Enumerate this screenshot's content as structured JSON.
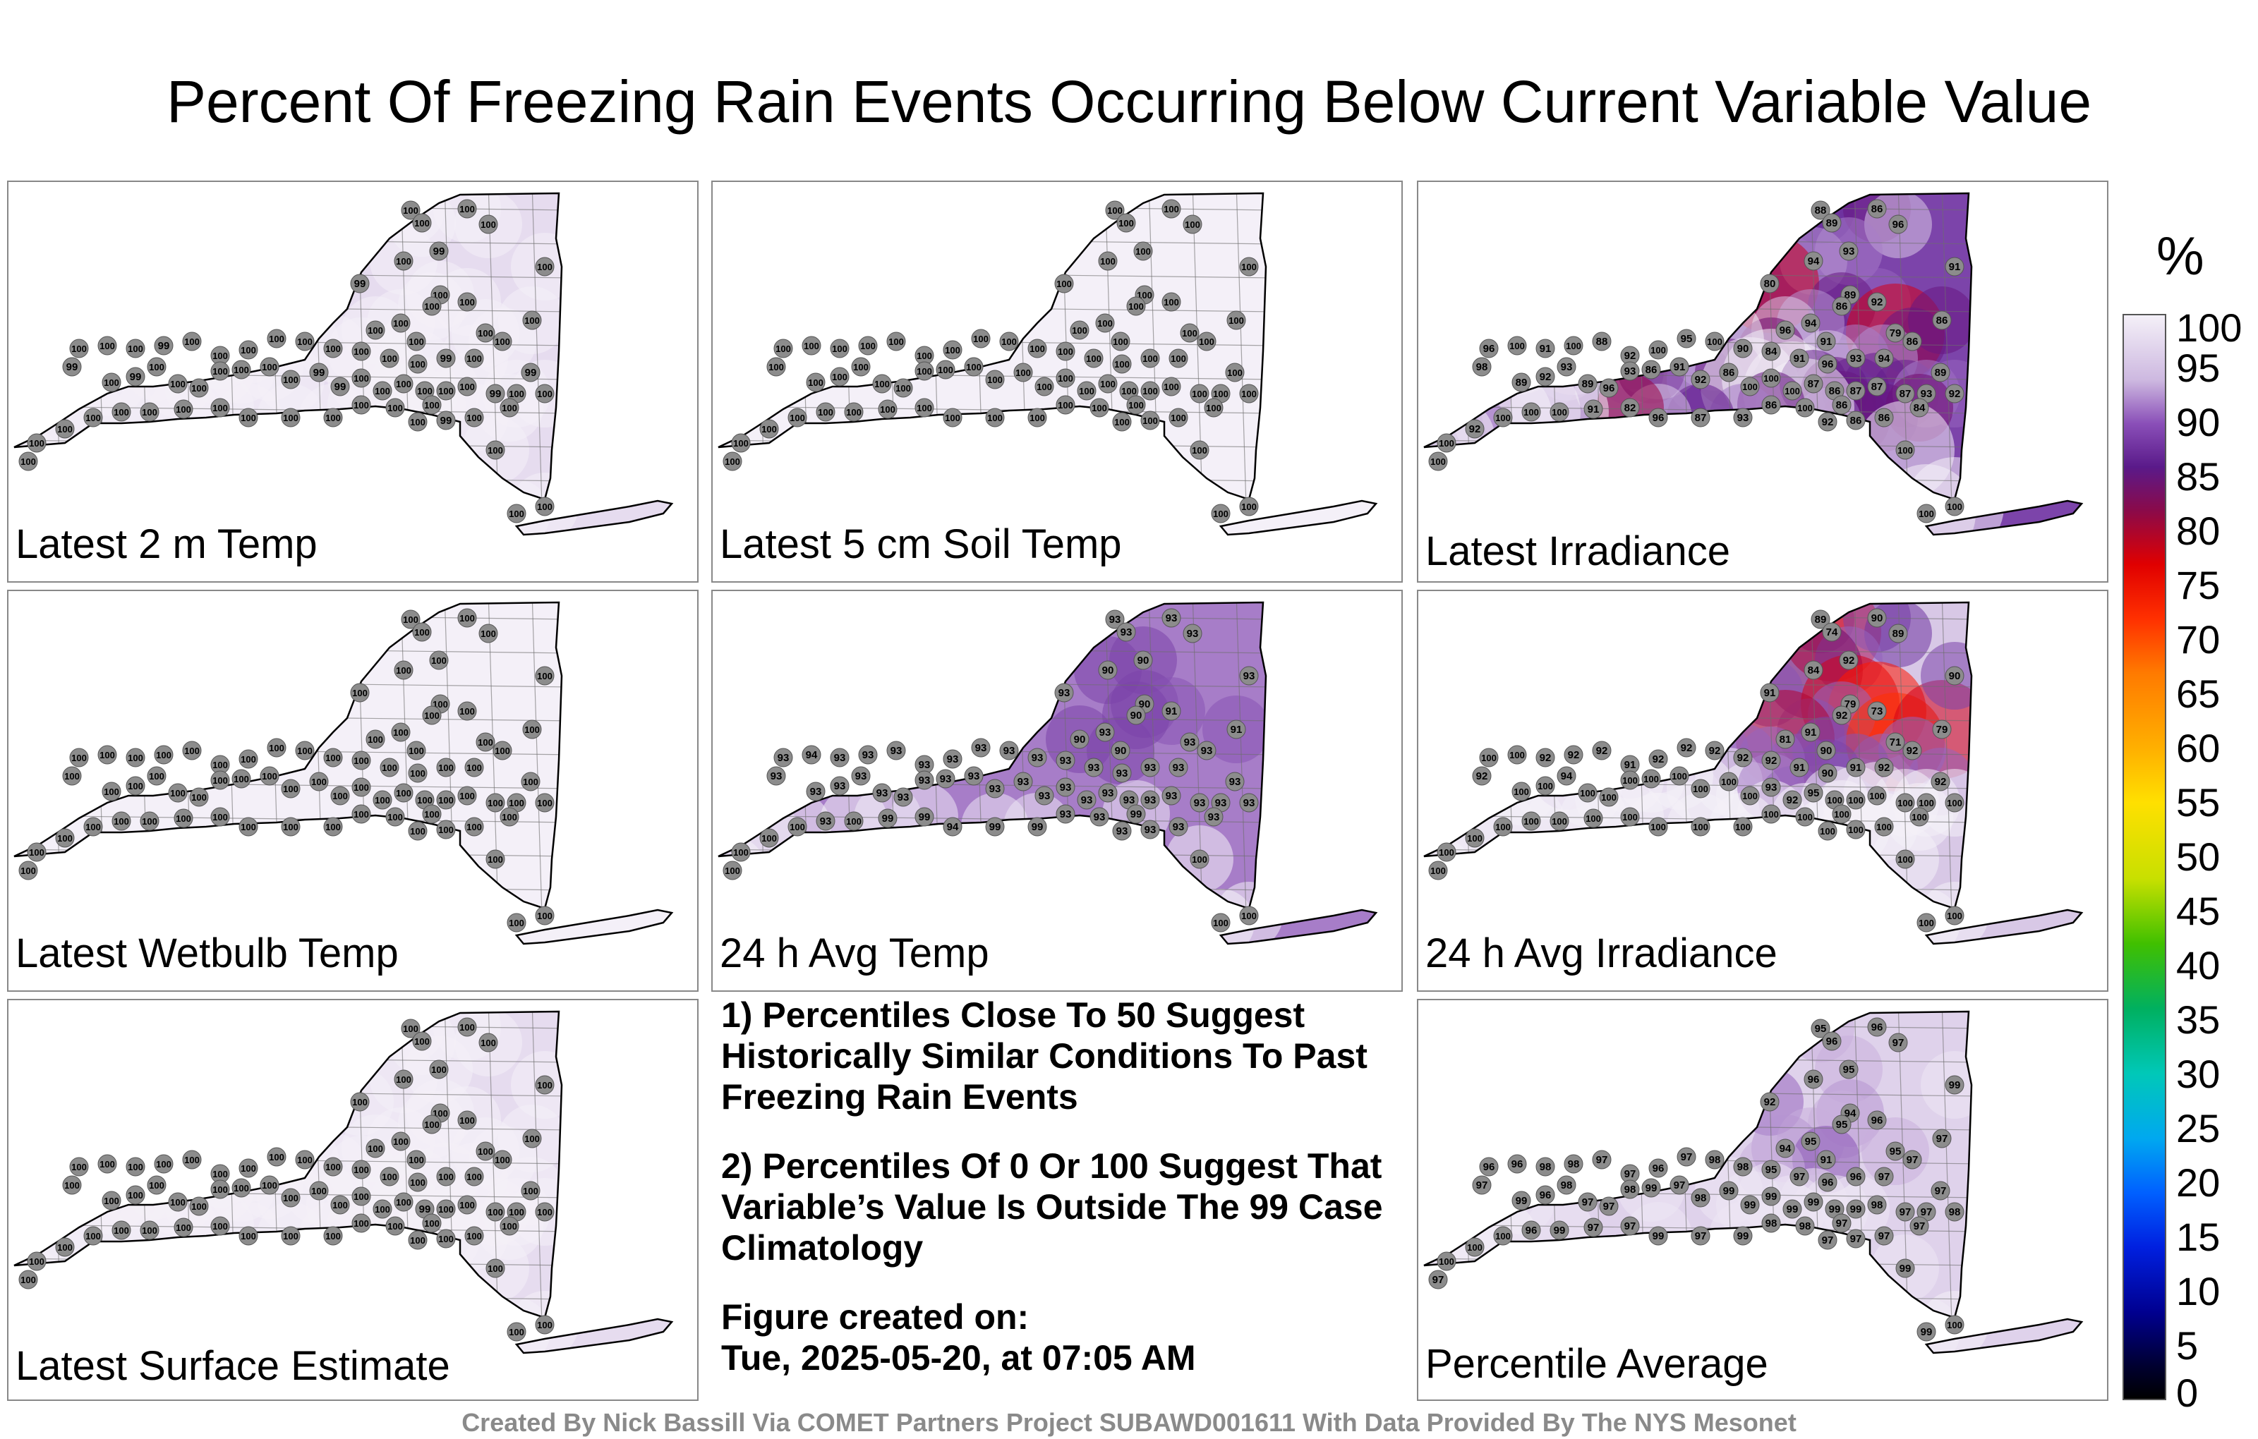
{
  "title": "Percent Of Freezing Rain Events Occurring Below Current Variable Value",
  "panels": [
    {
      "id": "p1",
      "label": "Latest 2 m Temp",
      "base": 98,
      "values": [
        "100",
        "100",
        "100",
        "100",
        "99",
        "100",
        "99",
        "100",
        "100",
        "100",
        "100",
        "100",
        "100",
        "100",
        "100",
        "100",
        "99",
        "100",
        "100",
        "99",
        "100",
        "100",
        "100",
        "100",
        "100",
        "100",
        "100",
        "100",
        "100",
        "99",
        "100",
        "100",
        "100",
        "99",
        "100",
        "99",
        "100",
        "100",
        "100",
        "100",
        "100",
        "100",
        "100",
        "99",
        "99",
        "100",
        "100",
        "100",
        "100",
        "100",
        "100",
        "99",
        "100",
        "100",
        "100",
        "100",
        "99",
        "100",
        "100",
        "100",
        "100",
        "100",
        "100",
        "100",
        "100",
        "100",
        "100",
        "100",
        "100",
        "100",
        "100",
        "100",
        "100",
        "100",
        "100"
      ]
    },
    {
      "id": "p2",
      "label": "Latest 5 cm Soil Temp",
      "base": 100,
      "values": [
        "100",
        "100",
        "100",
        "100",
        "100",
        "100",
        "100",
        "100",
        "100",
        "100",
        "100",
        "100",
        "100",
        "100",
        "100",
        "100",
        "100",
        "100",
        "100",
        "100",
        "100",
        "100",
        "100",
        "100",
        "100",
        "100",
        "100",
        "100",
        "100",
        "100",
        "100",
        "100",
        "100",
        "100",
        "100",
        "100",
        "100",
        "100",
        "100",
        "100",
        "100",
        "100",
        "100",
        "100",
        "100",
        "100",
        "100",
        "100",
        "100",
        "100",
        "100",
        "100",
        "100",
        "100",
        "100",
        "100",
        "100",
        "100",
        "100",
        "100",
        "100",
        "100",
        "100",
        "100",
        "100",
        "100",
        "100",
        "100",
        "100",
        "100",
        "100",
        "100",
        "100",
        "100",
        "100"
      ]
    },
    {
      "id": "p3",
      "label": "Latest Irradiance",
      "base": 90,
      "values": [
        "88",
        "89",
        "86",
        "96",
        "93",
        "94",
        "80",
        "89",
        "92",
        "86",
        "94",
        "96",
        "91",
        "79",
        "86",
        "91",
        "89",
        "86",
        "94",
        "93",
        "96",
        "91",
        "84",
        "90",
        "100",
        "95",
        "100",
        "92",
        "88",
        "100",
        "91",
        "100",
        "96",
        "98",
        "89",
        "92",
        "93",
        "89",
        "96",
        "93",
        "86",
        "91",
        "92",
        "86",
        "100",
        "100",
        "100",
        "87",
        "86",
        "87",
        "87",
        "87",
        "93",
        "92",
        "84",
        "86",
        "86",
        "86",
        "92",
        "100",
        "86",
        "93",
        "87",
        "96",
        "82",
        "91",
        "100",
        "100",
        "100",
        "92",
        "100",
        "100",
        "100",
        "100",
        "100"
      ]
    },
    {
      "id": "p4",
      "label": "Latest Wetbulb Temp",
      "base": 100,
      "values": [
        "100",
        "100",
        "100",
        "100",
        "100",
        "100",
        "100",
        "100",
        "100",
        "100",
        "100",
        "100",
        "100",
        "100",
        "100",
        "100",
        "100",
        "100",
        "100",
        "100",
        "100",
        "100",
        "100",
        "100",
        "100",
        "100",
        "100",
        "100",
        "100",
        "100",
        "100",
        "100",
        "100",
        "100",
        "100",
        "100",
        "100",
        "100",
        "100",
        "100",
        "100",
        "100",
        "100",
        "100",
        "100",
        "100",
        "100",
        "100",
        "100",
        "100",
        "100",
        "100",
        "100",
        "100",
        "100",
        "100",
        "100",
        "100",
        "100",
        "100",
        "100",
        "100",
        "100",
        "100",
        "100",
        "100",
        "100",
        "100",
        "100",
        "100",
        "100",
        "100",
        "100",
        "100",
        "100"
      ]
    },
    {
      "id": "p5",
      "label": "24 h Avg Temp",
      "base": 93,
      "values": [
        "93",
        "93",
        "93",
        "93",
        "90",
        "90",
        "93",
        "90",
        "91",
        "90",
        "93",
        "90",
        "90",
        "93",
        "91",
        "93",
        "93",
        "93",
        "93",
        "93",
        "93",
        "93",
        "93",
        "93",
        "93",
        "93",
        "93",
        "93",
        "93",
        "93",
        "93",
        "94",
        "93",
        "93",
        "93",
        "93",
        "93",
        "93",
        "93",
        "93",
        "93",
        "93",
        "93",
        "93",
        "93",
        "93",
        "93",
        "93",
        "93",
        "93",
        "93",
        "93",
        "93",
        "93",
        "93",
        "93",
        "93",
        "99",
        "93",
        "93",
        "93",
        "99",
        "99",
        "94",
        "99",
        "99",
        "100",
        "93",
        "100",
        "100",
        "100",
        "100",
        "100",
        "100",
        "100"
      ]
    },
    {
      "id": "p6",
      "label": "24 h Avg Irradiance",
      "base": 96,
      "values": [
        "89",
        "74",
        "90",
        "89",
        "92",
        "84",
        "91",
        "79",
        "73",
        "92",
        "91",
        "81",
        "90",
        "71",
        "79",
        "90",
        "92",
        "92",
        "92",
        "91",
        "90",
        "91",
        "92",
        "92",
        "92",
        "92",
        "92",
        "91",
        "92",
        "92",
        "92",
        "100",
        "100",
        "92",
        "100",
        "100",
        "94",
        "100",
        "100",
        "100",
        "100",
        "100",
        "100",
        "100",
        "100",
        "93",
        "92",
        "95",
        "100",
        "100",
        "100",
        "100",
        "100",
        "100",
        "100",
        "100",
        "100",
        "100",
        "100",
        "100",
        "100",
        "100",
        "100",
        "100",
        "100",
        "100",
        "100",
        "100",
        "100",
        "100",
        "100",
        "100",
        "100",
        "100",
        "100"
      ]
    },
    {
      "id": "p7",
      "label": "Latest Surface Estimate",
      "base": 98,
      "values": [
        "100",
        "100",
        "100",
        "100",
        "100",
        "100",
        "100",
        "100",
        "100",
        "100",
        "100",
        "100",
        "100",
        "100",
        "100",
        "100",
        "100",
        "100",
        "100",
        "100",
        "100",
        "100",
        "100",
        "100",
        "100",
        "100",
        "100",
        "100",
        "100",
        "100",
        "100",
        "100",
        "100",
        "100",
        "100",
        "100",
        "100",
        "100",
        "100",
        "100",
        "100",
        "100",
        "100",
        "100",
        "100",
        "100",
        "100",
        "100",
        "99",
        "100",
        "100",
        "100",
        "100",
        "100",
        "100",
        "100",
        "100",
        "100",
        "100",
        "100",
        "100",
        "100",
        "100",
        "100",
        "100",
        "100",
        "100",
        "100",
        "100",
        "100",
        "100",
        "100",
        "100",
        "100",
        "100"
      ]
    },
    {
      "id": "p8",
      "label": "Percentile Average",
      "base": 97,
      "values": [
        "95",
        "96",
        "96",
        "97",
        "95",
        "96",
        "92",
        "94",
        "96",
        "95",
        "95",
        "94",
        "91",
        "95",
        "97",
        "99",
        "97",
        "97",
        "97",
        "96",
        "96",
        "97",
        "95",
        "98",
        "98",
        "97",
        "96",
        "97",
        "97",
        "98",
        "98",
        "96",
        "96",
        "97",
        "99",
        "96",
        "98",
        "97",
        "97",
        "98",
        "99",
        "97",
        "98",
        "99",
        "99",
        "99",
        "99",
        "99",
        "99",
        "99",
        "98",
        "97",
        "97",
        "98",
        "97",
        "97",
        "97",
        "97",
        "97",
        "98",
        "98",
        "99",
        "97",
        "99",
        "97",
        "97",
        "99",
        "96",
        "100",
        "100",
        "100",
        "97",
        "99",
        "99",
        "100"
      ]
    }
  ],
  "notes": {
    "note1": "1) Percentiles Close To 50 Suggest Historically Similar Conditions To Past Freezing Rain Events",
    "note2": "2) Percentiles Of 0 Or 100 Suggest That Variable’s Value Is Outside The 99 Case Climatology",
    "created_label": "Figure created on:",
    "created_date": "Tue, 2025-05-20, at 07:05 AM"
  },
  "colorbar": {
    "unit": "%",
    "ticks": [
      "100",
      "95",
      "90",
      "85",
      "80",
      "75",
      "70",
      "65",
      "60",
      "55",
      "50",
      "45",
      "40",
      "35",
      "30",
      "25",
      "20",
      "15",
      "10",
      "5",
      "0"
    ]
  },
  "credit": "Created By Nick Bassill Via COMET Partners Project SUBAWD001611 With Data Provided By The NYS Mesonet",
  "colors": {
    "dot": "#8c8c8c",
    "outline": "#000000",
    "county_lines": "#6e6e6e"
  }
}
